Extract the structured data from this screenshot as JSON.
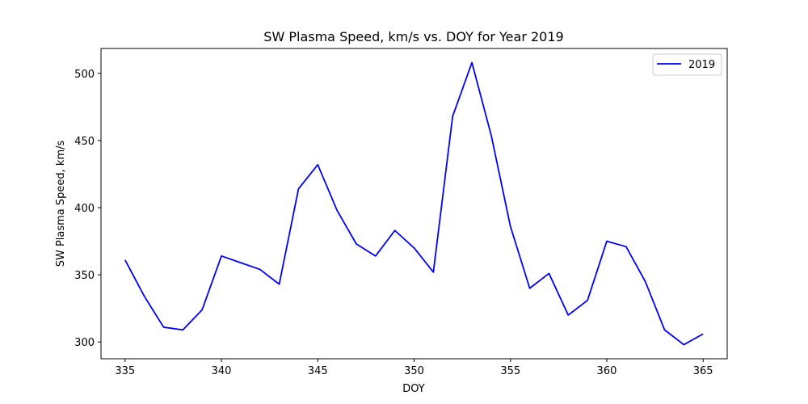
{
  "chart_data": {
    "type": "line",
    "title": "SW Plasma Speed, km/s  vs. DOY for Year 2019",
    "xlabel": "DOY",
    "ylabel": "SW Plasma Speed, km/s",
    "xlim": [
      333.75,
      366.25
    ],
    "ylim": [
      287.5,
      518.5
    ],
    "xticks": [
      335,
      340,
      345,
      350,
      355,
      360,
      365
    ],
    "yticks": [
      300,
      350,
      400,
      450,
      500
    ],
    "grid": false,
    "legend": "upper right",
    "x": [
      335,
      336,
      337,
      338,
      339,
      340,
      341,
      342,
      343,
      344,
      345,
      346,
      347,
      348,
      349,
      350,
      351,
      352,
      353,
      354,
      355,
      356,
      357,
      358,
      359,
      360,
      361,
      362,
      363,
      364,
      365
    ],
    "series": [
      {
        "name": "2019",
        "color": "#0000ff",
        "values": [
          361,
          334,
          311,
          309,
          324,
          364,
          359,
          354,
          343,
          414,
          432,
          398,
          373,
          364,
          383,
          370,
          352,
          468,
          508,
          454,
          386,
          340,
          351,
          320,
          331,
          375,
          371,
          345,
          309,
          298,
          306
        ]
      }
    ]
  }
}
